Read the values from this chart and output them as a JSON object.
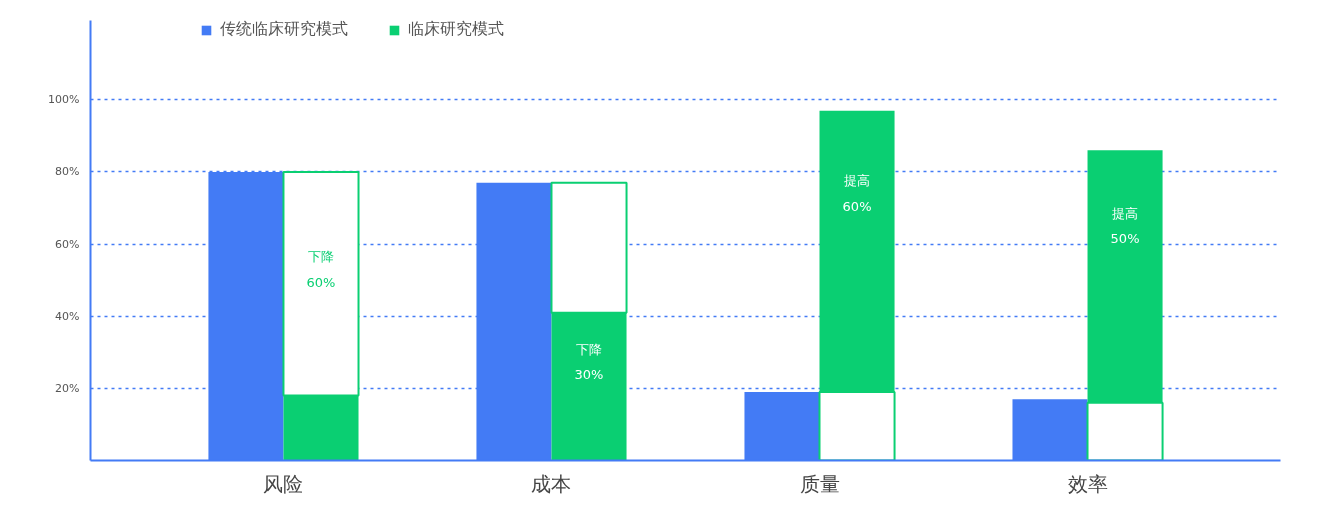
{
  "chart_data": {
    "type": "bar",
    "categories": [
      "风险",
      "成本",
      "质量",
      "效率"
    ],
    "series": [
      {
        "name": "传统临床研究模式",
        "color": "#437bf5",
        "values": [
          80,
          77,
          19,
          17
        ]
      },
      {
        "name": "临床研究模式",
        "color": "#0acf72",
        "base": [
          0,
          0,
          19,
          16
        ],
        "values": [
          18,
          41,
          78,
          70
        ]
      },
      {
        "color": "#ffffff",
        "base": [
          18,
          41,
          0,
          0
        ],
        "values": [
          62,
          36,
          19,
          16
        ]
      }
    ],
    "ylim": [
      0,
      122
    ],
    "yticks": [
      {
        "value": 20,
        "label": "20%"
      },
      {
        "value": 40,
        "label": "40%"
      },
      {
        "value": 60,
        "label": "60%"
      },
      {
        "value": 80,
        "label": "80%"
      },
      {
        "value": 100,
        "label": "100%"
      }
    ],
    "grid": "y",
    "legend": "top",
    "annotations": [
      "下降",
      "60%",
      "下降",
      "30%",
      "提高",
      "60%",
      "提高",
      "50%"
    ]
  }
}
